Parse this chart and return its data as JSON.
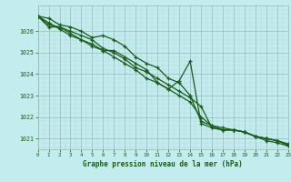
{
  "title": "Graphe pression niveau de la mer (hPa)",
  "bg_color": "#c2ecee",
  "plot_bg_color": "#c2ecee",
  "grid_color_major": "#9ab8b8",
  "grid_color_minor": "#b8d8d8",
  "line_color": "#1a5c1a",
  "xlim": [
    0,
    23
  ],
  "ylim": [
    1020.5,
    1027.2
  ],
  "yticks": [
    1021,
    1022,
    1023,
    1024,
    1025,
    1026
  ],
  "xticks": [
    0,
    1,
    2,
    3,
    4,
    5,
    6,
    7,
    8,
    9,
    10,
    11,
    12,
    13,
    14,
    15,
    16,
    17,
    18,
    19,
    20,
    21,
    22,
    23
  ],
  "series": [
    [
      1026.7,
      1026.6,
      1026.3,
      1026.2,
      1026.0,
      1025.7,
      1025.8,
      1025.6,
      1025.3,
      1024.8,
      1024.5,
      1024.3,
      1023.8,
      1023.6,
      1023.0,
      1021.8,
      1021.6,
      1021.4,
      1021.4,
      1021.3,
      1021.1,
      1020.9,
      1020.8,
      1020.65
    ],
    [
      1026.7,
      1026.4,
      1026.1,
      1025.8,
      1025.6,
      1025.3,
      1025.1,
      1024.8,
      1024.5,
      1024.2,
      1023.8,
      1023.6,
      1023.3,
      1023.0,
      1022.7,
      1022.0,
      1021.6,
      1021.5,
      1021.4,
      1021.3,
      1021.1,
      1021.0,
      1020.9,
      1020.75
    ],
    [
      1026.7,
      1026.3,
      1026.2,
      1026.0,
      1025.8,
      1025.6,
      1025.2,
      1025.0,
      1024.7,
      1024.3,
      1024.1,
      1023.8,
      1023.5,
      1023.2,
      1022.9,
      1022.5,
      1021.5,
      1021.4,
      1021.4,
      1021.3,
      1021.1,
      1021.0,
      1020.9,
      1020.7
    ],
    [
      1026.7,
      1026.2,
      1026.2,
      1025.9,
      1025.6,
      1025.4,
      1025.1,
      1025.1,
      1024.8,
      1024.5,
      1024.2,
      1023.6,
      1023.3,
      1023.7,
      1024.6,
      1021.7,
      1021.5,
      1021.4,
      1021.4,
      1021.3,
      1021.1,
      1021.0,
      1020.9,
      1020.7
    ]
  ]
}
